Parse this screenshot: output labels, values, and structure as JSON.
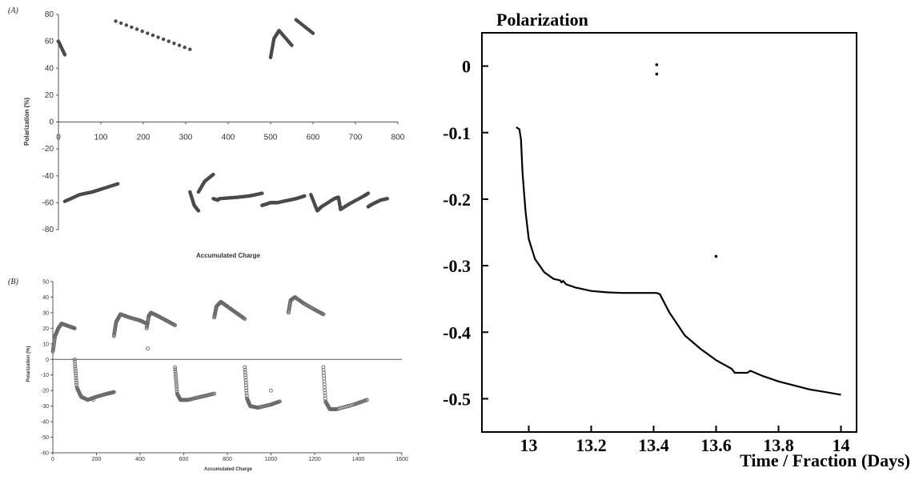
{
  "chart_data": [
    {
      "panel": "(A)",
      "type": "scatter",
      "title": "",
      "xlabel": "Accumulated Charge",
      "ylabel": "Polarization (%)",
      "xlim": [
        0,
        800
      ],
      "ylim": [
        -80,
        80
      ],
      "xticks": [
        0,
        100,
        200,
        300,
        400,
        500,
        600,
        700,
        800
      ],
      "yticks": [
        80,
        60,
        40,
        20,
        0,
        -20,
        -40,
        -60,
        -80
      ],
      "segments": [
        {
          "x": [
            0,
            15
          ],
          "y": [
            60,
            50
          ]
        },
        {
          "x": [
            135,
            310
          ],
          "y": [
            75,
            54
          ]
        },
        {
          "x": [
            500,
            508,
            520,
            550
          ],
          "y": [
            48,
            62,
            68,
            57
          ]
        },
        {
          "x": [
            560,
            600
          ],
          "y": [
            76,
            66
          ]
        },
        {
          "x": [
            15,
            50,
            80,
            100,
            140
          ],
          "y": [
            -59,
            -54,
            -52,
            -50,
            -46
          ]
        },
        {
          "x": [
            310,
            320,
            330
          ],
          "y": [
            -52,
            -62,
            -66
          ]
        },
        {
          "x": [
            330,
            345,
            365
          ],
          "y": [
            -52,
            -44,
            -39
          ]
        },
        {
          "x": [
            365,
            375,
            380,
            420,
            450,
            480
          ],
          "y": [
            -57,
            -58,
            -57,
            -56,
            -55,
            -53
          ]
        },
        {
          "x": [
            480,
            500,
            515,
            545,
            560,
            580
          ],
          "y": [
            -62,
            -60,
            -60,
            -58,
            -57,
            -55
          ]
        },
        {
          "x": [
            595,
            610,
            620,
            650,
            660
          ],
          "y": [
            -54,
            -66,
            -63,
            -57,
            -56
          ]
        },
        {
          "x": [
            660,
            665,
            685,
            720,
            730
          ],
          "y": [
            -56,
            -65,
            -61,
            -55,
            -53
          ]
        },
        {
          "x": [
            730,
            740,
            760,
            775
          ],
          "y": [
            -63,
            -61,
            -58,
            -57
          ]
        }
      ]
    },
    {
      "panel": "(B)",
      "type": "scatter",
      "title": "",
      "xlabel": "Accumulated Charge",
      "ylabel": "Polarization (%)",
      "xlim": [
        0,
        1600
      ],
      "ylim": [
        -60,
        50
      ],
      "xticks": [
        0,
        200,
        400,
        600,
        800,
        1000,
        1200,
        1400,
        1600
      ],
      "yticks": [
        50,
        40,
        30,
        20,
        10,
        0,
        -10,
        -20,
        -30,
        -40,
        -50,
        -60
      ],
      "segments": [
        {
          "x": [
            0,
            10,
            25,
            40,
            60,
            80,
            100
          ],
          "y": [
            5,
            15,
            20,
            23,
            22,
            21,
            20
          ]
        },
        {
          "x": [
            100,
            110,
            130,
            160,
            200,
            250,
            280
          ],
          "y": [
            0,
            -18,
            -24,
            -26,
            -24,
            -22,
            -21
          ]
        },
        {
          "x": [
            280,
            290,
            310,
            350,
            400,
            430
          ],
          "y": [
            15,
            24,
            29,
            27,
            25,
            23
          ]
        },
        {
          "x": [
            430,
            440,
            450,
            480,
            520,
            560
          ],
          "y": [
            20,
            28,
            30,
            28,
            25,
            22
          ]
        },
        {
          "x": [
            560,
            570,
            585,
            620,
            680,
            740
          ],
          "y": [
            -5,
            -22,
            -26,
            -26,
            -24,
            -22
          ]
        },
        {
          "x": [
            740,
            750,
            770,
            800,
            840,
            880
          ],
          "y": [
            27,
            34,
            37,
            34,
            30,
            26
          ]
        },
        {
          "x": [
            880,
            890,
            905,
            940,
            1000,
            1040
          ],
          "y": [
            -5,
            -25,
            -30,
            -31,
            -29,
            -27
          ]
        },
        {
          "x": [
            1080,
            1090,
            1110,
            1150,
            1200,
            1240
          ],
          "y": [
            30,
            38,
            40,
            36,
            32,
            29
          ]
        },
        {
          "x": [
            1240,
            1250,
            1270,
            1300,
            1380,
            1440
          ],
          "y": [
            -5,
            -27,
            -32,
            -32,
            -29,
            -26
          ]
        }
      ],
      "outliers": [
        {
          "x": [
            435
          ],
          "y": [
            7
          ]
        },
        {
          "x": [
            185
          ],
          "y": [
            -26
          ]
        },
        {
          "x": [
            1000
          ],
          "y": [
            -20
          ]
        }
      ]
    },
    {
      "type": "line",
      "title": "Polarization",
      "xlabel": "Time / Fraction (Days)",
      "ylabel": "",
      "xlim": [
        12.85,
        14.05
      ],
      "ylim": [
        -0.55,
        0.05
      ],
      "xticks": [
        13,
        13.2,
        13.4,
        13.6,
        13.8,
        14
      ],
      "xtick_labels": [
        "13",
        "13.2",
        "13.4",
        "13.6",
        "13.8",
        "14"
      ],
      "yticks": [
        0,
        -0.1,
        -0.2,
        -0.3,
        -0.4,
        -0.5
      ],
      "ytick_labels": [
        "0",
        "-0.1",
        "-0.2",
        "-0.3",
        "-0.4",
        "-0.5"
      ],
      "series": [
        {
          "x": [
            12.96,
            12.97,
            12.975,
            12.98,
            12.99,
            13.0,
            13.02,
            13.05,
            13.08,
            13.1,
            13.105,
            13.11,
            13.12,
            13.15,
            13.2,
            13.25,
            13.3,
            13.35,
            13.41,
            13.42,
            13.45,
            13.5,
            13.55,
            13.6,
            13.65,
            13.66,
            13.7,
            13.71,
            13.75,
            13.8,
            13.85,
            13.9,
            13.95,
            14.0
          ],
          "y": [
            -0.092,
            -0.095,
            -0.11,
            -0.16,
            -0.22,
            -0.26,
            -0.29,
            -0.31,
            -0.32,
            -0.322,
            -0.325,
            -0.323,
            -0.328,
            -0.333,
            -0.338,
            -0.34,
            -0.341,
            -0.341,
            -0.341,
            -0.343,
            -0.37,
            -0.405,
            -0.425,
            -0.442,
            -0.455,
            -0.461,
            -0.461,
            -0.458,
            -0.466,
            -0.474,
            -0.48,
            -0.486,
            -0.49,
            -0.494
          ]
        }
      ],
      "outliers": [
        {
          "x": [
            13.41,
            13.41,
            13.6
          ],
          "y": [
            0.002,
            -0.012,
            -0.286
          ]
        }
      ]
    }
  ]
}
